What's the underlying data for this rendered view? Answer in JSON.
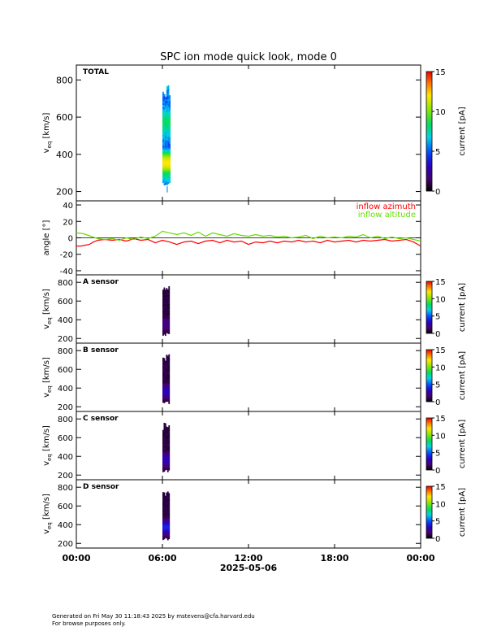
{
  "title": "SPC ion mode quick look, mode 0",
  "footer": {
    "line1": "Generated on Fri May 30 11:18:43 2025 by mstevens@cfa.harvard.edu",
    "line2": "For browse purposes only."
  },
  "colorbar": {
    "label": "current [pA]",
    "range": [
      0,
      15
    ],
    "ticks_large": [
      0,
      5,
      10,
      15
    ],
    "ticks_small": [
      0,
      5,
      10,
      15
    ]
  },
  "time_axis": {
    "date_label": "2025-05-06",
    "range_hours": [
      0,
      24
    ],
    "ticks_hours": [
      0,
      6,
      12,
      18,
      24
    ],
    "tick_labels": [
      "00:00",
      "06:00",
      "12:00",
      "18:00",
      "00:00"
    ]
  },
  "chart_data": [
    {
      "type": "heatmap",
      "panel": "TOTAL",
      "label": "TOTAL",
      "ylabel_main": "v",
      "ylabel_sub": "eq",
      "ylabel_unit": "[km/s]",
      "ylim": [
        150,
        880
      ],
      "yticks": [
        200,
        400,
        600,
        800
      ],
      "x_hours_range": [
        6.0,
        6.55
      ],
      "v_range": [
        230,
        770
      ],
      "peak_v": 350,
      "peak_current_pA": 12
    },
    {
      "type": "line",
      "panel": "angle",
      "ylabel": "angle [°]",
      "ylim": [
        -45,
        45
      ],
      "yticks": [
        -40,
        -20,
        0,
        20,
        40
      ],
      "series": [
        {
          "name": "inflow azimuth",
          "color": "#ff0000",
          "x_hours": [
            0,
            0.3,
            0.6,
            0.9,
            1.2,
            1.5,
            2.0,
            2.5,
            3.0,
            3.5,
            4.0,
            4.5,
            5.0,
            5.5,
            6.0,
            6.5,
            7.0,
            7.5,
            8.0,
            8.5,
            9.0,
            9.5,
            10.0,
            10.5,
            11.0,
            11.5,
            12.0,
            12.5,
            13.0,
            13.5,
            14.0,
            14.5,
            15.0,
            15.5,
            16.0,
            16.5,
            17.0,
            17.5,
            18.0,
            18.5,
            19.0,
            19.5,
            20.0,
            20.5,
            21.0,
            21.5,
            22.0,
            22.5,
            23.0,
            23.5,
            24.0
          ],
          "values": [
            -10,
            -10,
            -9,
            -8,
            -5,
            -3,
            -2,
            -3,
            -2,
            -4,
            -1,
            -3,
            -2,
            -6,
            -3,
            -5,
            -8,
            -5,
            -4,
            -7,
            -4,
            -3,
            -6,
            -3,
            -5,
            -4,
            -8,
            -5,
            -6,
            -4,
            -6,
            -4,
            -5,
            -3,
            -5,
            -4,
            -6,
            -3,
            -5,
            -4,
            -3,
            -5,
            -3,
            -4,
            -3,
            -2,
            -4,
            -3,
            -2,
            -5,
            -10
          ]
        },
        {
          "name": "inflow altitude",
          "color": "#66dd00",
          "x_hours": [
            0,
            0.5,
            1.0,
            1.5,
            2.0,
            2.5,
            3.0,
            3.5,
            4.0,
            4.5,
            5.0,
            5.5,
            6.0,
            6.5,
            7.0,
            7.5,
            8.0,
            8.5,
            9.0,
            9.5,
            10.0,
            10.5,
            11.0,
            11.5,
            12.0,
            12.5,
            13.0,
            13.5,
            14.0,
            14.5,
            15.0,
            15.5,
            16.0,
            16.5,
            17.0,
            17.5,
            18.0,
            18.5,
            19.0,
            19.5,
            20.0,
            20.5,
            21.0,
            21.5,
            22.0,
            22.5,
            23.0,
            23.5,
            24.0
          ],
          "values": [
            6,
            5,
            2,
            -1,
            -2,
            -1,
            -3,
            0,
            -2,
            1,
            -1,
            2,
            8,
            6,
            4,
            6,
            3,
            7,
            2,
            6,
            4,
            2,
            5,
            3,
            2,
            4,
            2,
            3,
            1,
            2,
            0,
            1,
            3,
            -1,
            2,
            0,
            1,
            0,
            2,
            1,
            4,
            0,
            2,
            -1,
            1,
            -1,
            0,
            -2,
            -4
          ]
        }
      ]
    },
    {
      "type": "heatmap",
      "panel": "A",
      "label": "A sensor",
      "ylabel_main": "v",
      "ylabel_sub": "eq",
      "ylabel_unit": "[km/s]",
      "ylim": [
        150,
        880
      ],
      "yticks": [
        200,
        400,
        600,
        800
      ],
      "x_hours_range": [
        6.0,
        6.5
      ],
      "v_range": [
        230,
        760
      ],
      "peak_v": 350,
      "peak_current_pA": 2
    },
    {
      "type": "heatmap",
      "panel": "B",
      "label": "B sensor",
      "ylabel_main": "v",
      "ylabel_sub": "eq",
      "ylabel_unit": "[km/s]",
      "ylim": [
        150,
        880
      ],
      "yticks": [
        200,
        400,
        600,
        800
      ],
      "x_hours_range": [
        6.0,
        6.5
      ],
      "v_range": [
        230,
        760
      ],
      "peak_v": 360,
      "peak_current_pA": 3
    },
    {
      "type": "heatmap",
      "panel": "C",
      "label": "C sensor",
      "ylabel_main": "v",
      "ylabel_sub": "eq",
      "ylabel_unit": "[km/s]",
      "ylim": [
        150,
        880
      ],
      "yticks": [
        200,
        400,
        600,
        800
      ],
      "x_hours_range": [
        6.0,
        6.5
      ],
      "v_range": [
        230,
        760
      ],
      "peak_v": 360,
      "peak_current_pA": 3
    },
    {
      "type": "heatmap",
      "panel": "D",
      "label": "D sensor",
      "ylabel_main": "v",
      "ylabel_sub": "eq",
      "ylabel_unit": "[km/s]",
      "ylim": [
        150,
        880
      ],
      "yticks": [
        200,
        400,
        600,
        800
      ],
      "x_hours_range": [
        6.0,
        6.5
      ],
      "v_range": [
        230,
        760
      ],
      "peak_v": 370,
      "peak_current_pA": 4
    }
  ]
}
